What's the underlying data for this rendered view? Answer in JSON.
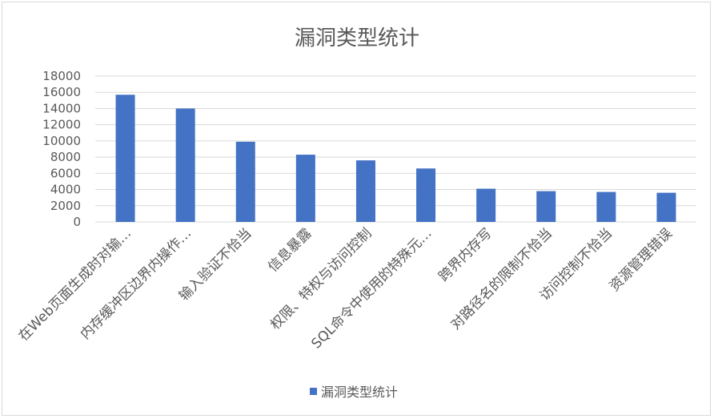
{
  "chart_data": {
    "type": "bar",
    "title": "漏洞类型统计",
    "categories": [
      "在Web页面生成时对输…",
      "内存缓冲区边界内操作…",
      "输入验证不恰当",
      "信息暴露",
      "权限、特权与访问控制",
      "SQL命令中使用的特殊元…",
      "跨界内存写",
      "对路径名的限制不恰当",
      "访问控制不恰当",
      "资源管理错误"
    ],
    "series": [
      {
        "name": "漏洞类型统计",
        "values": [
          15700,
          14000,
          9900,
          8300,
          7600,
          6600,
          4100,
          3800,
          3700,
          3600
        ]
      }
    ],
    "ylim": [
      0,
      18000
    ],
    "yticks": [
      "0",
      "2000",
      "4000",
      "6000",
      "8000",
      "10000",
      "12000",
      "14000",
      "16000",
      "18000"
    ],
    "grid": true,
    "legend_position": "bottom",
    "bar_color": "#4472c4",
    "grid_color": "#d9d9d9",
    "text_color": "#595959"
  }
}
